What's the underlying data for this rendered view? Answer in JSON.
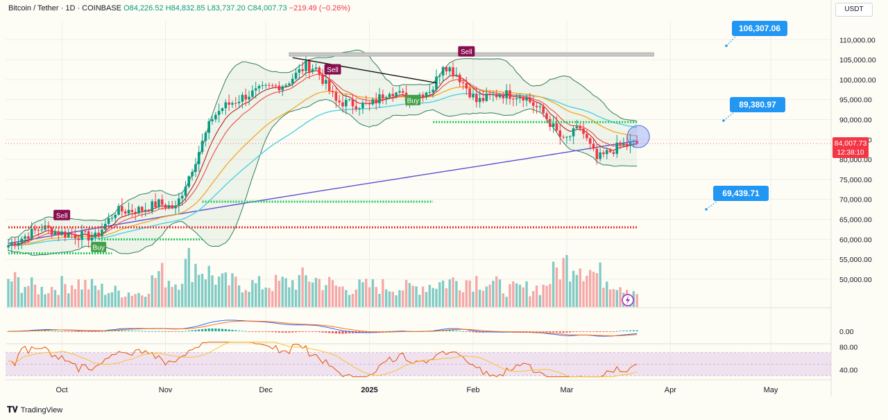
{
  "header": {
    "symbol": "Bitcoin / Tether · 1D · COINBASE",
    "open": "O84,226.52",
    "high": "H84,832.85",
    "low": "L83,737.20",
    "close": "C84,007.73",
    "change": "−219.49 (−0.26%)"
  },
  "unit_button": "USDT",
  "branding": "TradingView",
  "price_badge": {
    "price": "84,007.73",
    "countdown": "12:38:10",
    "color": "#f23645"
  },
  "colors": {
    "up": "#089981",
    "down": "#f23645",
    "ema_short": "#b71c1c",
    "ema_mid": "#ef5350",
    "ema_long": "#f5a623",
    "ma_cyan": "#4dd0e1",
    "ma_200": "#5b4fd1",
    "bollinger": "#2e7d5a",
    "support_green": "#22c55e",
    "resistance_red": "#e53935",
    "callout": "#2196f3"
  },
  "chart_data": {
    "type": "candlestick",
    "ylim": [
      46000,
      113000
    ],
    "yticks": [
      "110,000.00",
      "105,000.00",
      "100,000.00",
      "95,000.00",
      "90,000.00",
      "85,000.00",
      "80,000.00",
      "75,000.00",
      "70,000.00",
      "65,000.00",
      "60,000.00",
      "55,000.00",
      "50,000.00"
    ],
    "ytick_values": [
      110000,
      105000,
      100000,
      95000,
      90000,
      85000,
      80000,
      75000,
      70000,
      65000,
      60000,
      55000,
      50000
    ],
    "xlabels": [
      {
        "label": "Oct",
        "day": 16
      },
      {
        "label": "Nov",
        "day": 47
      },
      {
        "label": "Dec",
        "day": 77
      },
      {
        "label": "2025",
        "day": 108
      },
      {
        "label": "Feb",
        "day": 139
      },
      {
        "label": "Mar",
        "day": 167
      },
      {
        "label": "Apr",
        "day": 198
      },
      {
        "label": "May",
        "day": 228
      }
    ],
    "close_keypoints": [
      [
        0,
        58500
      ],
      [
        10,
        63000
      ],
      [
        16,
        61500
      ],
      [
        26,
        60500
      ],
      [
        32,
        67000
      ],
      [
        40,
        67500
      ],
      [
        45,
        69000
      ],
      [
        50,
        67800
      ],
      [
        56,
        80000
      ],
      [
        61,
        90500
      ],
      [
        64,
        93000
      ],
      [
        71,
        96000
      ],
      [
        76,
        97500
      ],
      [
        83,
        99000
      ],
      [
        89,
        103500
      ],
      [
        92,
        102800
      ],
      [
        98,
        94500
      ],
      [
        108,
        93400
      ],
      [
        114,
        97500
      ],
      [
        120,
        95000
      ],
      [
        127,
        98000
      ],
      [
        130,
        104000
      ],
      [
        134,
        101500
      ],
      [
        140,
        94500
      ],
      [
        147,
        96500
      ],
      [
        154,
        96000
      ],
      [
        160,
        91500
      ],
      [
        166,
        84500
      ],
      [
        171,
        88000
      ],
      [
        176,
        80000
      ],
      [
        183,
        83500
      ],
      [
        188,
        84007
      ]
    ],
    "volume_keypoints": [
      [
        0,
        45
      ],
      [
        10,
        28
      ],
      [
        20,
        40
      ],
      [
        30,
        26
      ],
      [
        40,
        22
      ],
      [
        45,
        55
      ],
      [
        50,
        40
      ],
      [
        54,
        72
      ],
      [
        58,
        62
      ],
      [
        64,
        40
      ],
      [
        75,
        35
      ],
      [
        85,
        40
      ],
      [
        90,
        48
      ],
      [
        100,
        30
      ],
      [
        110,
        34
      ],
      [
        120,
        30
      ],
      [
        130,
        40
      ],
      [
        140,
        45
      ],
      [
        150,
        28
      ],
      [
        160,
        32
      ],
      [
        165,
        65
      ],
      [
        170,
        78
      ],
      [
        175,
        55
      ],
      [
        180,
        45
      ],
      [
        188,
        25
      ]
    ],
    "volume_ylim": [
      0,
      100
    ],
    "horizontal_levels": [
      {
        "name": "resistance-zone",
        "value": 106307.06,
        "day_from": 84,
        "day_to": 193,
        "color": "#9e9e9e"
      },
      {
        "name": "support-89k",
        "value": 89380.97,
        "day_from": 127,
        "day_to": 188,
        "color": "#22c55e"
      },
      {
        "name": "support-69k",
        "value": 69439.71,
        "day_from": 58,
        "day_to": 127,
        "color": "#22c55e"
      },
      {
        "name": "level-63k",
        "value": 63000,
        "day_from": 0,
        "day_to": 188,
        "color": "#e53935"
      },
      {
        "name": "support-60k",
        "value": 60000,
        "day_from": 27,
        "day_to": 58,
        "color": "#22c55e"
      },
      {
        "name": "support-56k",
        "value": 56500,
        "day_from": 0,
        "day_to": 31,
        "color": "#22c55e"
      }
    ],
    "trendline": [
      [
        85,
        105500
      ],
      [
        128,
        99200
      ]
    ],
    "callouts": [
      {
        "label": "106,307.06",
        "value": 106307.06
      },
      {
        "label": "89,380.97",
        "value": 89380.97
      },
      {
        "label": "69,439.71",
        "value": 69439.71
      }
    ],
    "signals": [
      {
        "label": "Sell",
        "day": 16,
        "value": 66000,
        "type": "sell"
      },
      {
        "label": "Buy",
        "day": 27,
        "value": 58000,
        "type": "buy"
      },
      {
        "label": "Sell",
        "day": 97,
        "value": 102500,
        "type": "sell"
      },
      {
        "label": "Buy",
        "day": 121,
        "value": 94800,
        "type": "buy"
      },
      {
        "label": "Sell",
        "day": 137,
        "value": 107000,
        "type": "sell"
      }
    ],
    "macd_ytick": "0.00",
    "rsi_yticks": [
      "80.00",
      "40.00"
    ],
    "rsi_ytick_values": [
      80,
      40
    ]
  }
}
